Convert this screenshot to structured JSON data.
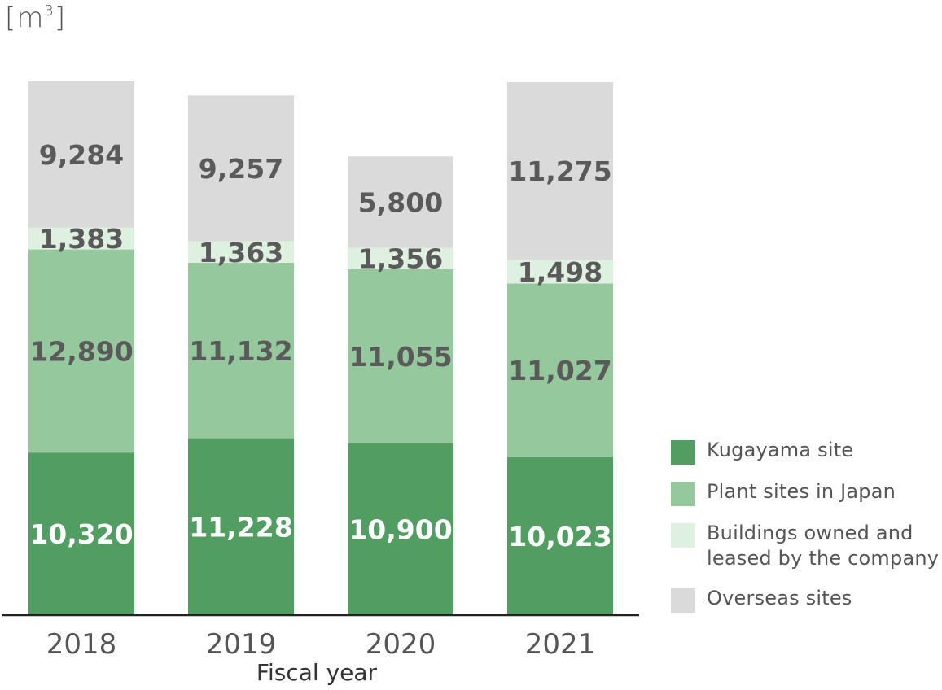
{
  "unit": {
    "base": "[m",
    "sup": "3",
    "close": "]"
  },
  "chart_data": {
    "type": "bar",
    "stacked": true,
    "categories": [
      "2018",
      "2019",
      "2020",
      "2021"
    ],
    "xlabel": "Fiscal year",
    "ylabel": "[m3]",
    "series": [
      {
        "name": "Kugayama site",
        "values": [
          10320,
          11228,
          10900,
          10023
        ],
        "color": "#519d62",
        "label_color": "#ffffff"
      },
      {
        "name": "Plant sites in Japan",
        "values": [
          12890,
          11132,
          11055,
          11027
        ],
        "color": "#96c89e",
        "label_color": "#5a5a5a"
      },
      {
        "name": "Buildings owned and\nleased by the company",
        "values": [
          1383,
          1363,
          1356,
          1498
        ],
        "color": "#def0e0",
        "label_color": "#5a5a5a"
      },
      {
        "name": "Overseas sites",
        "values": [
          9284,
          9257,
          5800,
          11275
        ],
        "color": "#dadada",
        "label_color": "#5a5a5a"
      }
    ],
    "data_labels": [
      [
        "10,320",
        "11,228",
        "10,900",
        "10,023"
      ],
      [
        "12,890",
        "11,132",
        "11,055",
        "11,027"
      ],
      [
        "1,383",
        "1,363",
        "1,356",
        "1,498"
      ],
      [
        "9,284",
        "9,257",
        "5,800",
        "11,275"
      ]
    ],
    "grid": false,
    "legend_position": "bottom-right"
  }
}
